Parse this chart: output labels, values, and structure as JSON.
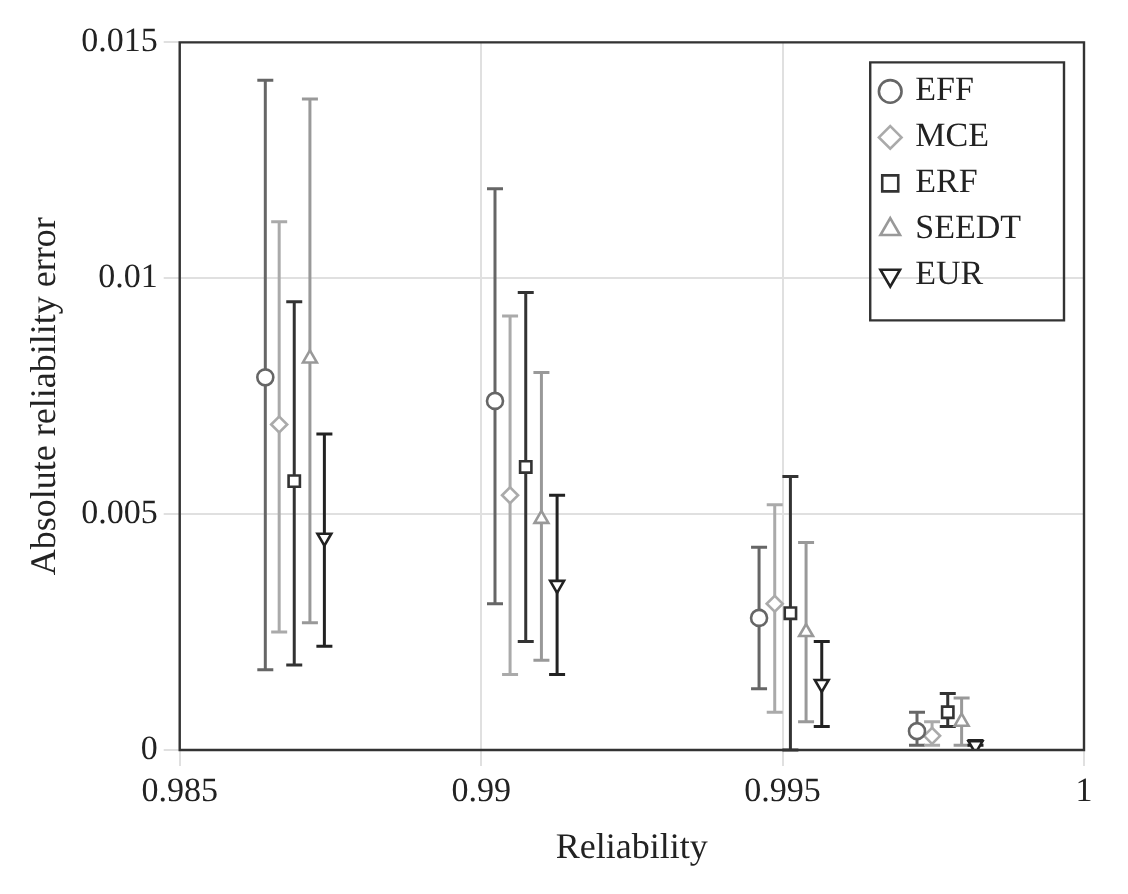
{
  "chart_data": {
    "type": "scatter",
    "xlabel": "Reliability",
    "ylabel": "Absolute reliability error",
    "xlim": [
      0.985,
      1
    ],
    "xticks": [
      0.985,
      0.99,
      0.995,
      1
    ],
    "ylim": [
      0,
      0.015
    ],
    "yticks": [
      0,
      0.005,
      0.01,
      0.015
    ],
    "grid": true,
    "legend": "top right",
    "series": [
      {
        "name": "EFF",
        "color": "#666666",
        "marker": "circle",
        "x": [
          0.98642,
          0.99023,
          0.99461,
          0.99723
        ],
        "values": [
          0.0079,
          0.0074,
          0.0028,
          0.0004
        ],
        "errors": [
          [
            0.0017,
            0.0142
          ],
          [
            0.0031,
            0.0119
          ],
          [
            0.0013,
            0.0043
          ],
          [
            0.0001,
            0.0008
          ]
        ]
      },
      {
        "name": "MCE",
        "color": "#aaaaaa",
        "marker": "diamond",
        "x": [
          0.98665,
          0.99048,
          0.99487,
          0.99748
        ],
        "values": [
          0.0069,
          0.0054,
          0.0031,
          0.0003
        ],
        "errors": [
          [
            0.0025,
            0.0112
          ],
          [
            0.0016,
            0.0092
          ],
          [
            0.0008,
            0.0052
          ],
          [
            0.0001,
            0.0006
          ]
        ]
      },
      {
        "name": "ERF",
        "color": "#333333",
        "marker": "square",
        "x": [
          0.9869,
          0.99074,
          0.99513,
          0.99774
        ],
        "values": [
          0.0057,
          0.006,
          0.0029,
          0.0008
        ],
        "errors": [
          [
            0.0018,
            0.0095
          ],
          [
            0.0023,
            0.0097
          ],
          [
            0,
            0.0058
          ],
          [
            0.0005,
            0.0012
          ]
        ]
      },
      {
        "name": "SEEDT",
        "color": "#999999",
        "marker": "triangle",
        "x": [
          0.98716,
          0.991,
          0.99539,
          0.99797
        ],
        "values": [
          0.0083,
          0.0049,
          0.0025,
          0.0006
        ],
        "errors": [
          [
            0.0027,
            0.0138
          ],
          [
            0.0019,
            0.008
          ],
          [
            0.0006,
            0.0044
          ],
          [
            0.0001,
            0.0011
          ]
        ]
      },
      {
        "name": "EUR",
        "color": "#222222",
        "marker": "triangle-down",
        "x": [
          0.9874,
          0.99126,
          0.99565,
          0.9982
        ],
        "values": [
          0.0045,
          0.0035,
          0.0014,
          0.0001
        ],
        "errors": [
          [
            0.0022,
            0.0067
          ],
          [
            0.0016,
            0.0054
          ],
          [
            0.0005,
            0.0023
          ],
          [
            0.0001,
            0.0002
          ]
        ]
      }
    ]
  }
}
